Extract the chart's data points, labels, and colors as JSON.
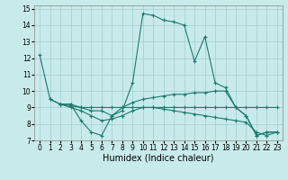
{
  "xlabel": "Humidex (Indice chaleur)",
  "bg_color": "#c8eaea",
  "grid_color": "#a0cccc",
  "line_color": "#1a7a6e",
  "marker": "+",
  "xlim": [
    -0.5,
    23.5
  ],
  "ylim": [
    7,
    15.2
  ],
  "yticks": [
    7,
    8,
    9,
    10,
    11,
    12,
    13,
    14,
    15
  ],
  "xticks": [
    0,
    1,
    2,
    3,
    4,
    5,
    6,
    7,
    8,
    9,
    10,
    11,
    12,
    13,
    14,
    15,
    16,
    17,
    18,
    19,
    20,
    21,
    22,
    23
  ],
  "series": [
    {
      "x": [
        0,
        1,
        2,
        3,
        4,
        5,
        6,
        7,
        8,
        9,
        10,
        11,
        12,
        13,
        14,
        15,
        16,
        17,
        18,
        19,
        20,
        21,
        22,
        23
      ],
      "y": [
        12.2,
        9.5,
        9.2,
        9.2,
        8.2,
        7.5,
        7.3,
        8.5,
        8.8,
        10.5,
        14.7,
        14.6,
        14.3,
        14.2,
        14.0,
        11.8,
        13.3,
        10.5,
        10.2,
        9.0,
        8.5,
        7.3,
        7.5,
        7.5
      ]
    },
    {
      "x": [
        1,
        2,
        3,
        4,
        5,
        6,
        7,
        8,
        9,
        10,
        11,
        12,
        13,
        14,
        15,
        16,
        17,
        18,
        19,
        20,
        21,
        22,
        23
      ],
      "y": [
        9.5,
        9.2,
        9.2,
        9.0,
        8.8,
        8.8,
        8.5,
        9.0,
        9.3,
        9.5,
        9.6,
        9.7,
        9.8,
        9.8,
        9.9,
        9.9,
        10.0,
        10.0,
        9.0,
        8.5,
        7.3,
        7.5,
        7.5
      ]
    },
    {
      "x": [
        2,
        3,
        4,
        5,
        6,
        7,
        8,
        9,
        10,
        11,
        12,
        13,
        14,
        15,
        16,
        17,
        18,
        19,
        20,
        21,
        22,
        23
      ],
      "y": [
        9.2,
        9.1,
        9.0,
        9.0,
        9.0,
        9.0,
        9.0,
        9.0,
        9.0,
        9.0,
        9.0,
        9.0,
        9.0,
        9.0,
        9.0,
        9.0,
        9.0,
        9.0,
        9.0,
        9.0,
        9.0,
        9.0
      ]
    },
    {
      "x": [
        2,
        3,
        4,
        5,
        6,
        7,
        8,
        9,
        10,
        11,
        12,
        13,
        14,
        15,
        16,
        17,
        18,
        19,
        20,
        21,
        22,
        23
      ],
      "y": [
        9.2,
        9.0,
        8.8,
        8.5,
        8.2,
        8.3,
        8.5,
        8.8,
        9.0,
        9.0,
        8.9,
        8.8,
        8.7,
        8.6,
        8.5,
        8.4,
        8.3,
        8.2,
        8.1,
        7.5,
        7.3,
        7.5
      ]
    }
  ]
}
